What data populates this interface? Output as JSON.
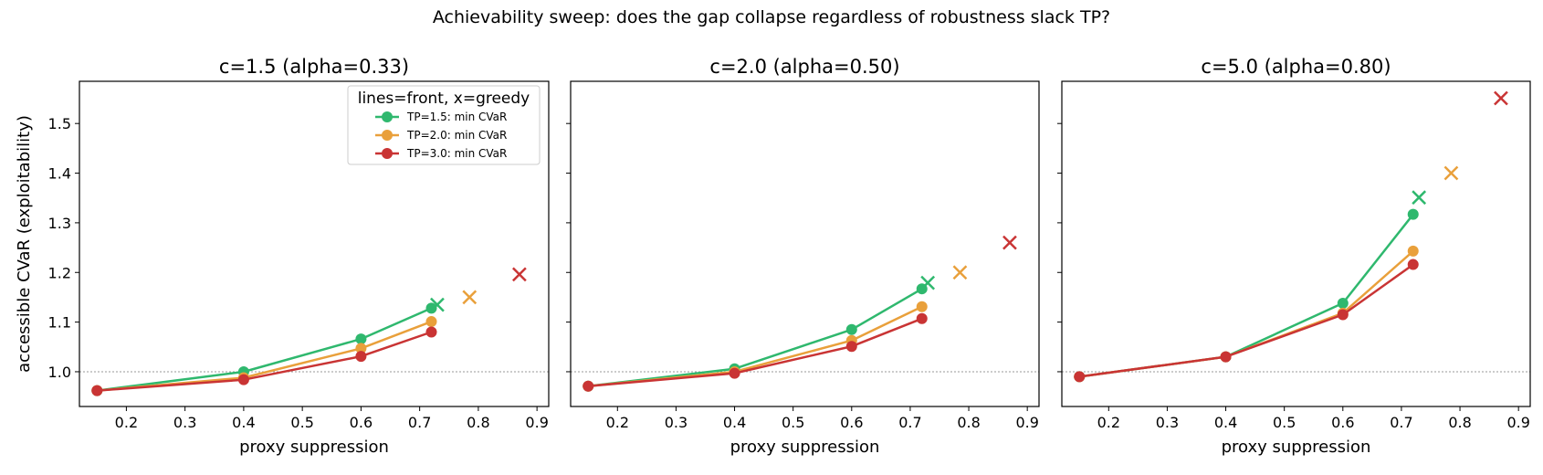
{
  "suptitle": "Achievability sweep: does the gap collapse regardless of robustness slack TP?",
  "legend": {
    "title": "lines=front, x=greedy",
    "entries": [
      "TP=1.5: min CVaR",
      "TP=2.0: min CVaR",
      "TP=3.0: min CVaR"
    ]
  },
  "colors": {
    "TP=1.5": "#2fb86e",
    "TP=2.0": "#e9a03b",
    "TP=3.0": "#c93434",
    "reference": "#999999"
  },
  "chart_data": [
    {
      "type": "line",
      "title": "c=1.5 (alpha=0.33)",
      "xlabel": "proxy suppression",
      "ylabel": "accessible CVaR (exploitability)",
      "xlim": [
        0.12,
        0.92
      ],
      "ylim": [
        0.93,
        1.585
      ],
      "xticks": [
        "0.2",
        "0.3",
        "0.4",
        "0.5",
        "0.6",
        "0.7",
        "0.8",
        "0.9"
      ],
      "yticks": [
        "1.0",
        "1.1",
        "1.2",
        "1.3",
        "1.4",
        "1.5"
      ],
      "reference_line": 1.0,
      "series": [
        {
          "name": "TP=1.5: min CVaR",
          "x": [
            0.15,
            0.4,
            0.6,
            0.72
          ],
          "y": [
            0.962,
            1.0,
            1.066,
            1.128
          ],
          "greedy": [
            0.73,
            1.135
          ]
        },
        {
          "name": "TP=2.0: min CVaR",
          "x": [
            0.15,
            0.4,
            0.6,
            0.72
          ],
          "y": [
            0.962,
            0.988,
            1.047,
            1.101
          ],
          "greedy": [
            0.785,
            1.15
          ]
        },
        {
          "name": "TP=3.0: min CVaR",
          "x": [
            0.15,
            0.4,
            0.6,
            0.72
          ],
          "y": [
            0.962,
            0.984,
            1.031,
            1.08
          ],
          "greedy": [
            0.87,
            1.196
          ]
        }
      ]
    },
    {
      "type": "line",
      "title": "c=2.0 (alpha=0.50)",
      "xlabel": "proxy suppression",
      "ylabel": "",
      "xlim": [
        0.12,
        0.92
      ],
      "ylim": [
        0.93,
        1.585
      ],
      "xticks": [
        "0.2",
        "0.3",
        "0.4",
        "0.5",
        "0.6",
        "0.7",
        "0.8",
        "0.9"
      ],
      "yticks": [],
      "reference_line": 1.0,
      "series": [
        {
          "name": "TP=1.5: min CVaR",
          "x": [
            0.15,
            0.4,
            0.6,
            0.72
          ],
          "y": [
            0.971,
            1.006,
            1.085,
            1.167
          ],
          "greedy": [
            0.73,
            1.179
          ]
        },
        {
          "name": "TP=2.0: min CVaR",
          "x": [
            0.15,
            0.4,
            0.6,
            0.72
          ],
          "y": [
            0.971,
            1.0,
            1.063,
            1.131
          ],
          "greedy": [
            0.785,
            1.2
          ]
        },
        {
          "name": "TP=3.0: min CVaR",
          "x": [
            0.15,
            0.4,
            0.6,
            0.72
          ],
          "y": [
            0.971,
            0.997,
            1.051,
            1.107
          ],
          "greedy": [
            0.87,
            1.26
          ]
        }
      ]
    },
    {
      "type": "line",
      "title": "c=5.0 (alpha=0.80)",
      "xlabel": "proxy suppression",
      "ylabel": "",
      "xlim": [
        0.12,
        0.92
      ],
      "ylim": [
        0.93,
        1.585
      ],
      "xticks": [
        "0.2",
        "0.3",
        "0.4",
        "0.5",
        "0.6",
        "0.7",
        "0.8",
        "0.9"
      ],
      "yticks": [],
      "reference_line": 1.0,
      "series": [
        {
          "name": "TP=1.5: min CVaR",
          "x": [
            0.15,
            0.4,
            0.6,
            0.72
          ],
          "y": [
            0.99,
            1.03,
            1.138,
            1.317
          ],
          "greedy": [
            0.73,
            1.351
          ]
        },
        {
          "name": "TP=2.0: min CVaR",
          "x": [
            0.15,
            0.4,
            0.6,
            0.72
          ],
          "y": [
            0.99,
            1.03,
            1.118,
            1.243
          ],
          "greedy": [
            0.785,
            1.4
          ]
        },
        {
          "name": "TP=3.0: min CVaR",
          "x": [
            0.15,
            0.4,
            0.6,
            0.72
          ],
          "y": [
            0.99,
            1.03,
            1.115,
            1.216
          ],
          "greedy": [
            0.87,
            1.551
          ]
        }
      ]
    }
  ]
}
